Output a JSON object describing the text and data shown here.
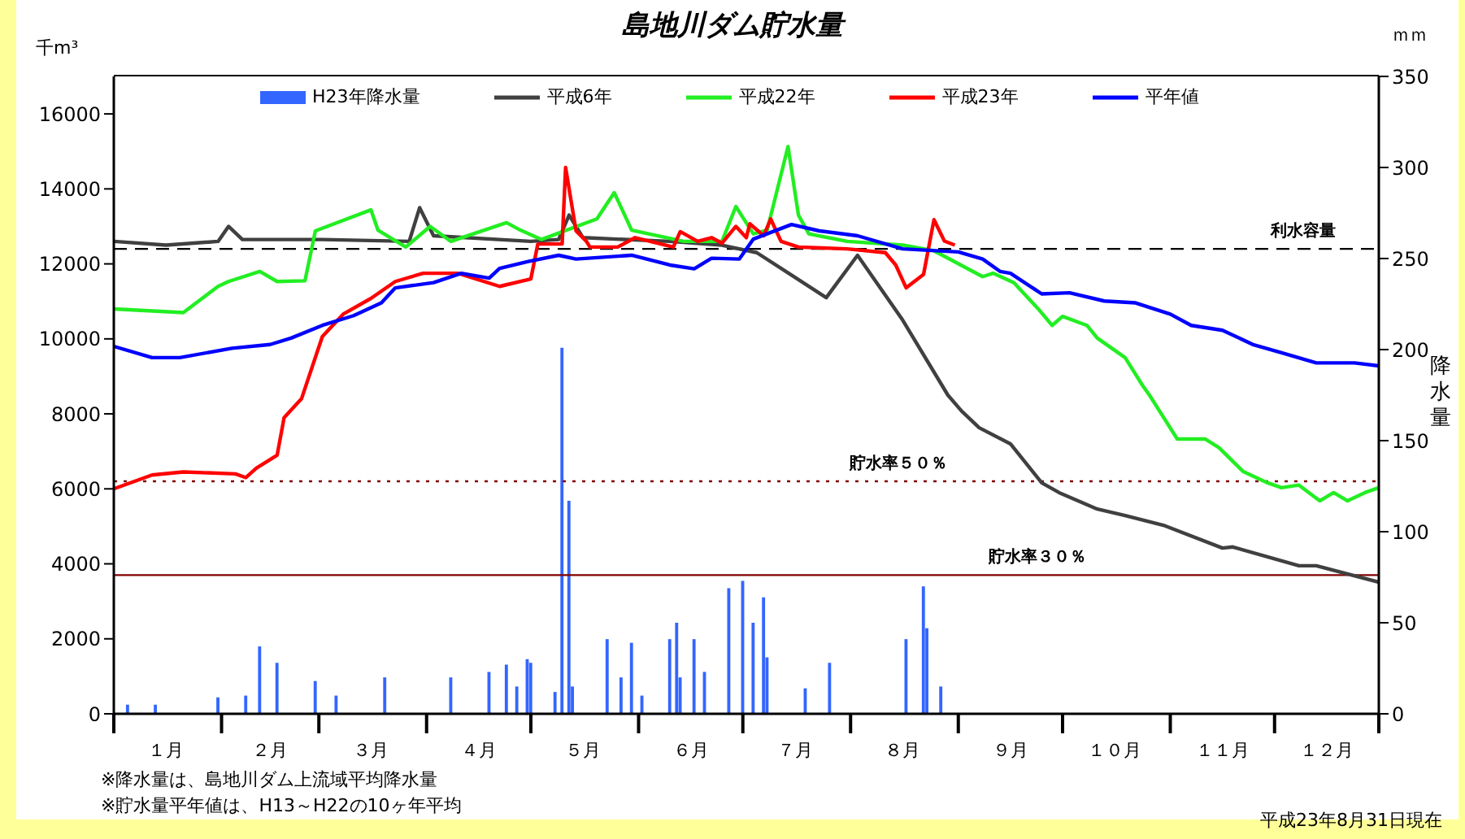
{
  "chart_data": {
    "type": "line",
    "title": "島地川ダム貯水量",
    "ylabel": "千m³",
    "y2label": "降水量",
    "annotations": [
      "※降水量は、島地川ダム上流域平均降水量",
      "※貯水量平年値は、H13～H22の10ヶ年平均",
      "平成23年8月31日現在",
      "ｍｍ"
    ],
    "xlim": [
      "--01-01",
      "--12-31"
    ],
    "xticks": [
      {
        "value": "--01-01",
        "label": null
      },
      {
        "value": "--01-16",
        "label": "１月"
      },
      {
        "value": "--02-01",
        "label": null
      },
      {
        "value": "--02-15",
        "label": "２月"
      },
      {
        "value": "--03-01",
        "label": null
      },
      {
        "value": "--03-16",
        "label": "３月"
      },
      {
        "value": "--04-01",
        "label": null
      },
      {
        "value": "--04-16",
        "label": "４月"
      },
      {
        "value": "--05-01",
        "label": null
      },
      {
        "value": "--05-16",
        "label": "５月"
      },
      {
        "value": "--06-01",
        "label": null
      },
      {
        "value": "--06-16",
        "label": "６月"
      },
      {
        "value": "--07-01",
        "label": null
      },
      {
        "value": "--07-16",
        "label": "７月"
      },
      {
        "value": "--08-01",
        "label": null
      },
      {
        "value": "--08-16",
        "label": "８月"
      },
      {
        "value": "--09-01",
        "label": null
      },
      {
        "value": "--09-16",
        "label": "９月"
      },
      {
        "value": "--10-01",
        "label": null
      },
      {
        "value": "--10-16",
        "label": "１０月"
      },
      {
        "value": "--11-01",
        "label": null
      },
      {
        "value": "--11-16",
        "label": "１１月"
      },
      {
        "value": "--12-01",
        "label": null
      },
      {
        "value": "--12-16",
        "label": "１２月"
      },
      {
        "value": "--12-31",
        "label": null
      }
    ],
    "ylim": [
      0,
      17000
    ],
    "yticks": [
      0,
      2000,
      4000,
      6000,
      8000,
      10000,
      12000,
      14000,
      16000
    ],
    "y2lim": [
      0,
      350
    ],
    "y2ticks": [
      0,
      50,
      100,
      150,
      200,
      250,
      300,
      350
    ],
    "legend": "top",
    "marker": "none",
    "line_style": "solid",
    "ref_lines": [
      {
        "axis": "y",
        "value": 12400,
        "label": "利水容量",
        "color": "#000000",
        "line_style": "dashed"
      },
      {
        "axis": "y",
        "value": 6200,
        "label": "貯水率５０％",
        "color": "#800000",
        "line_style": "dotted"
      },
      {
        "axis": "y",
        "value": 3700,
        "label": "貯水率３０％",
        "color": "#800000",
        "line_style": "solid"
      }
    ],
    "series": [
      {
        "name": "H23年降水量",
        "type": "bar",
        "axis": "y2",
        "color": "#3366ff",
        "x": [
          "--01-05",
          "--01-13",
          "--01-31",
          "--02-08",
          "--02-12",
          "--02-17",
          "--02-28",
          "--03-06",
          "--03-20",
          "--04-08",
          "--04-19",
          "--04-24",
          "--04-27",
          "--04-30",
          "--05-01",
          "--05-08",
          "--05-10",
          "--05-12",
          "--05-13",
          "--05-23",
          "--05-27",
          "--05-30",
          "--06-02",
          "--06-10",
          "--06-12",
          "--06-13",
          "--06-17",
          "--06-20",
          "--06-27",
          "--07-01",
          "--07-04",
          "--07-07",
          "--07-08",
          "--07-19",
          "--07-26",
          "--08-17",
          "--08-22",
          "--08-23",
          "--08-27"
        ],
        "values": [
          5,
          5,
          9,
          10,
          37,
          28,
          18,
          10,
          20,
          20,
          23,
          27,
          15,
          30,
          28,
          12,
          201,
          117,
          15,
          41,
          20,
          39,
          10,
          41,
          50,
          20,
          41,
          23,
          69,
          73,
          50,
          64,
          31,
          14,
          28,
          41,
          70,
          47,
          15
        ]
      },
      {
        "name": "平成6年",
        "color": "#404040",
        "x": [
          "--01-01",
          "--01-16",
          "--01-31",
          "--02-03",
          "--02-07",
          "--03-02",
          "--03-27",
          "--03-30",
          "--04-03",
          "--05-01",
          "--05-09",
          "--05-12",
          "--05-16",
          "--06-10",
          "--06-25",
          "--07-05",
          "--07-15",
          "--07-25",
          "--08-03",
          "--08-16",
          "--08-29",
          "--09-02",
          "--09-07",
          "--09-16",
          "--09-25",
          "--09-30",
          "--10-11",
          "--10-19",
          "--10-30",
          "--11-16",
          "--11-19",
          "--12-08",
          "--12-13",
          "--12-31"
        ],
        "values": [
          12600,
          12500,
          12600,
          13000,
          12650,
          12650,
          12600,
          13500,
          12750,
          12600,
          12650,
          13300,
          12700,
          12600,
          12500,
          12300,
          11700,
          11100,
          12230,
          10500,
          8500,
          8070,
          7630,
          7200,
          6160,
          5900,
          5460,
          5290,
          5030,
          4420,
          4450,
          3950,
          3950,
          3510
        ]
      },
      {
        "name": "平成22年",
        "color": "#22ee22",
        "x": [
          "--01-01",
          "--01-21",
          "--01-31",
          "--02-03",
          "--02-12",
          "--02-17",
          "--02-25",
          "--02-28",
          "--03-16",
          "--03-18",
          "--03-26",
          "--04-02",
          "--04-08",
          "--04-24",
          "--04-28",
          "--05-04",
          "--05-20",
          "--05-25",
          "--05-30",
          "--06-14",
          "--06-25",
          "--06-29",
          "--07-04",
          "--07-08",
          "--07-14",
          "--07-17",
          "--07-20",
          "--07-31",
          "--08-16",
          "--08-25",
          "--09-08",
          "--09-11",
          "--09-17",
          "--09-24",
          "--09-28",
          "--10-01",
          "--10-08",
          "--10-11",
          "--10-19",
          "--10-24",
          "--10-26",
          "--11-03",
          "--11-11",
          "--11-15",
          "--11-22",
          "--11-29",
          "--12-03",
          "--12-08",
          "--12-14",
          "--12-18",
          "--12-22",
          "--12-27",
          "--12-31"
        ],
        "values": [
          10800,
          10700,
          11400,
          11530,
          11800,
          11530,
          11550,
          12880,
          13440,
          12900,
          12450,
          13000,
          12600,
          13100,
          12900,
          12650,
          13200,
          13900,
          12900,
          12600,
          12600,
          13530,
          12800,
          12900,
          15130,
          13300,
          12800,
          12600,
          12500,
          12350,
          11660,
          11750,
          11500,
          10800,
          10360,
          10600,
          10360,
          10020,
          9500,
          8760,
          8500,
          7330,
          7330,
          7100,
          6460,
          6160,
          6030,
          6100,
          5680,
          5900,
          5680,
          5900,
          6030
        ]
      },
      {
        "name": "平成23年",
        "color": "#ff0000",
        "x": [
          "--01-01",
          "--01-12",
          "--01-21",
          "--02-05",
          "--02-08",
          "--02-11",
          "--02-17",
          "--02-19",
          "--02-24",
          "--03-02",
          "--03-08",
          "--03-16",
          "--03-23",
          "--03-31",
          "--04-10",
          "--04-22",
          "--05-01",
          "--05-03",
          "--05-10",
          "--05-11",
          "--05-14",
          "--05-17",
          "--05-18",
          "--05-26",
          "--05-31",
          "--06-11",
          "--06-13",
          "--06-18",
          "--06-22",
          "--06-25",
          "--06-29",
          "--07-02",
          "--07-03",
          "--07-07",
          "--07-09",
          "--07-12",
          "--07-17",
          "--07-31",
          "--08-11",
          "--08-14",
          "--08-17",
          "--08-22",
          "--08-25",
          "--08-28",
          "--08-31"
        ],
        "values": [
          6000,
          6370,
          6450,
          6400,
          6300,
          6550,
          6900,
          7900,
          8400,
          10060,
          10660,
          11080,
          11530,
          11750,
          11750,
          11400,
          11600,
          12530,
          12530,
          14570,
          12880,
          12600,
          12450,
          12450,
          12700,
          12450,
          12860,
          12600,
          12700,
          12550,
          13000,
          12700,
          13070,
          12750,
          13200,
          12600,
          12450,
          12400,
          12300,
          11970,
          11360,
          11720,
          13180,
          12610,
          12500
        ]
      },
      {
        "name": "平年値",
        "color": "#0000ff",
        "x": [
          "--01-01",
          "--01-12",
          "--01-20",
          "--02-04",
          "--02-15",
          "--02-21",
          "--03-02",
          "--03-11",
          "--03-19",
          "--03-23",
          "--04-03",
          "--04-11",
          "--04-19",
          "--04-22",
          "--04-30",
          "--05-09",
          "--05-14",
          "--05-30",
          "--06-10",
          "--06-17",
          "--06-22",
          "--06-30",
          "--07-04",
          "--07-15",
          "--07-23",
          "--08-03",
          "--08-16",
          "--09-01",
          "--09-08",
          "--09-13",
          "--09-16",
          "--09-25",
          "--10-03",
          "--10-13",
          "--10-22",
          "--11-01",
          "--11-07",
          "--11-16",
          "--11-25",
          "--12-03",
          "--12-13",
          "--12-24",
          "--12-31"
        ],
        "values": [
          9800,
          9500,
          9500,
          9750,
          9850,
          10020,
          10360,
          10620,
          10960,
          11360,
          11500,
          11750,
          11620,
          11880,
          12060,
          12230,
          12130,
          12230,
          11970,
          11870,
          12150,
          12130,
          12660,
          13050,
          12880,
          12750,
          12400,
          12320,
          12130,
          11800,
          11750,
          11200,
          11230,
          11010,
          10960,
          10660,
          10360,
          10230,
          9840,
          9630,
          9360,
          9360,
          9280
        ]
      }
    ]
  }
}
